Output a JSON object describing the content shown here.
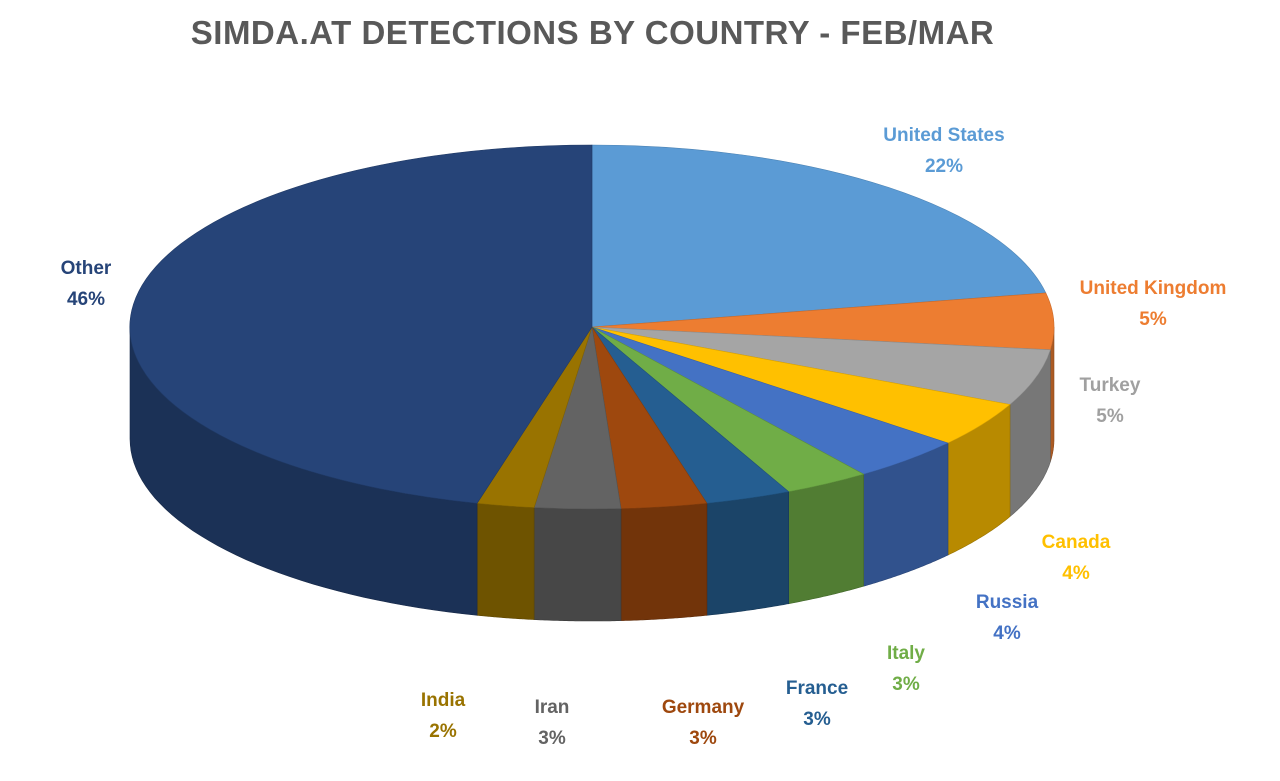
{
  "chart_data": {
    "type": "pie",
    "title": "SIMDA.AT DETECTIONS BY COUNTRY - FEB/MAR",
    "slices": [
      {
        "label": "United States",
        "value": 22,
        "value_label": "22%",
        "color": "#5B9BD5"
      },
      {
        "label": "United Kingdom",
        "value": 5,
        "value_label": "5%",
        "color": "#ED7D31"
      },
      {
        "label": "Turkey",
        "value": 5,
        "value_label": "5%",
        "color": "#A5A5A5"
      },
      {
        "label": "Canada",
        "value": 4,
        "value_label": "4%",
        "color": "#FFC000"
      },
      {
        "label": "Russia",
        "value": 4,
        "value_label": "4%",
        "color": "#4472C4"
      },
      {
        "label": "Italy",
        "value": 3,
        "value_label": "3%",
        "color": "#70AD47"
      },
      {
        "label": "France",
        "value": 3,
        "value_label": "3%",
        "color": "#255E91"
      },
      {
        "label": "Germany",
        "value": 3,
        "value_label": "3%",
        "color": "#9E480E"
      },
      {
        "label": "Iran",
        "value": 3,
        "value_label": "3%",
        "color": "#636363"
      },
      {
        "label": "India",
        "value": 2,
        "value_label": "2%",
        "color": "#997300"
      },
      {
        "label": "Other",
        "value": 46,
        "value_label": "46%",
        "color": "#264478"
      }
    ]
  }
}
